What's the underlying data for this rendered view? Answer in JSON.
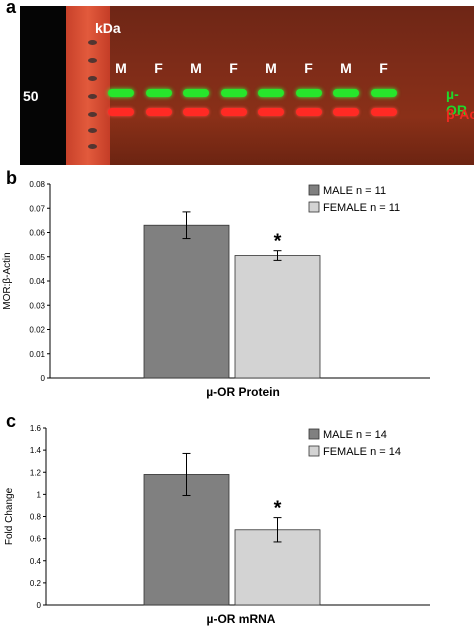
{
  "panels": {
    "a": "a",
    "b": "b",
    "c": "c"
  },
  "blot": {
    "kda_label": "kDa",
    "mw_marker": "50",
    "lanes": [
      "M",
      "F",
      "M",
      "F",
      "M",
      "F",
      "M",
      "F"
    ],
    "green_band_label": "µ-OR",
    "red_band_label": "β-Actin",
    "colors": {
      "green_band": "#27e62b",
      "red_band": "#ff2a24"
    }
  },
  "chart_data": [
    {
      "type": "bar",
      "panel": "b",
      "title": "",
      "xlabel": "µ-OR Protein",
      "ylabel": "MOR:β-Actin",
      "ylim": [
        0,
        0.08
      ],
      "yticks": [
        "0",
        "0.01",
        "0.02",
        "0.03",
        "0.04",
        "0.05",
        "0.06",
        "0.07",
        "0.08"
      ],
      "series": [
        {
          "name": "MALE n = 11",
          "value": 0.063,
          "error": 0.0055,
          "color": "#808080"
        },
        {
          "name": "FEMALE n = 11",
          "value": 0.0505,
          "error": 0.002,
          "color": "#d3d3d3"
        }
      ],
      "annotation": "*",
      "legend": "top-right",
      "grid": false
    },
    {
      "type": "bar",
      "panel": "c",
      "title": "",
      "xlabel": "µ-OR mRNA",
      "ylabel": "Fold Change",
      "ylim": [
        0,
        1.6
      ],
      "yticks": [
        "0",
        "0.2",
        "0.4",
        "0.6",
        "0.8",
        "1",
        "1.2",
        "1.4",
        "1.6"
      ],
      "series": [
        {
          "name": "MALE n = 14",
          "value": 1.18,
          "error": 0.19,
          "color": "#808080"
        },
        {
          "name": "FEMALE n = 14",
          "value": 0.68,
          "error": 0.11,
          "color": "#d3d3d3"
        }
      ],
      "annotation": "*",
      "legend": "top-right",
      "grid": false
    }
  ]
}
